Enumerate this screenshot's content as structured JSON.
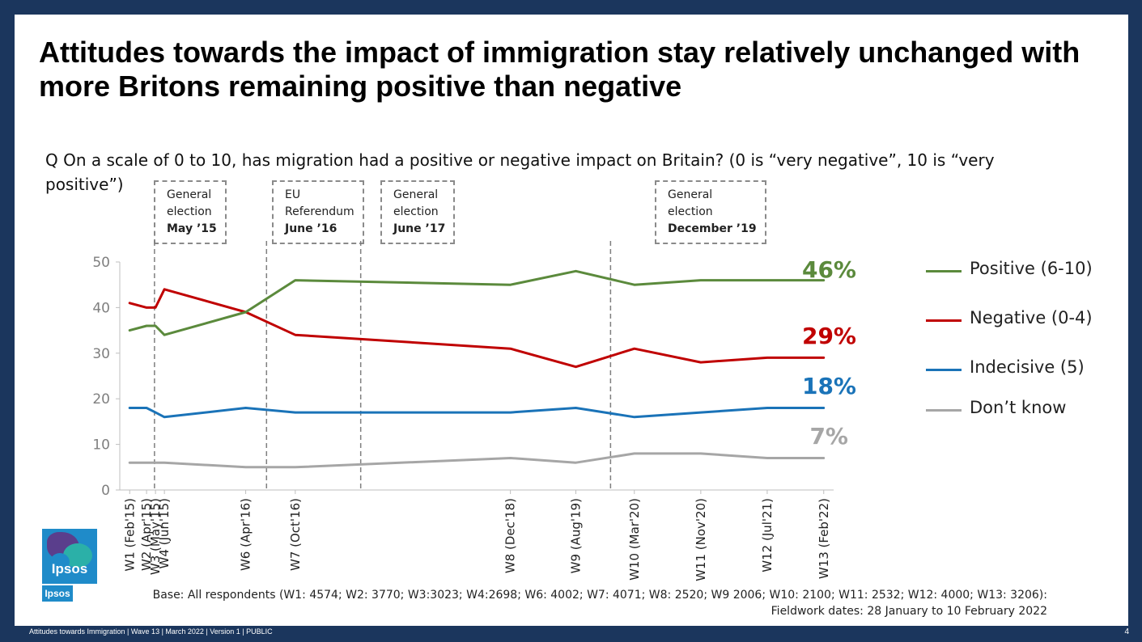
{
  "title": "Attitudes towards the impact of immigration stay relatively unchanged with more Britons remaining positive than negative",
  "question": "Q On a scale of 0 to 10, has migration had a positive or negative impact on Britain? (0 is “very negative”, 10 is “very positive”)",
  "events": [
    {
      "line1": "General",
      "line2": "election",
      "bold": "May ’15"
    },
    {
      "line1": "EU",
      "line2": "Referendum",
      "bold": "June ’16"
    },
    {
      "line1": "General",
      "line2": "election",
      "bold": "June ’17"
    },
    {
      "line1": "General",
      "line2": "election",
      "bold": "December ’19"
    }
  ],
  "chart_data": {
    "type": "line",
    "title": "",
    "xlabel": "",
    "ylabel": "",
    "ylim": [
      0,
      50
    ],
    "yticks": [
      0,
      10,
      20,
      30,
      40,
      50
    ],
    "categories": [
      "W1 (Feb'15)",
      "W2 (Apr'15)",
      "W3 (May'15)",
      "W4 (Jun'15)",
      "W6 (Apr'16)",
      "W7 (Oct'16)",
      "W8 (Dec'18)",
      "W9 (Aug'19)",
      "W10 (Mar'20)",
      "W11 (Nov'20)",
      "W12 (Jul'21)",
      "W13 (Feb'22)"
    ],
    "dates": [
      2015.1,
      2015.27,
      2015.36,
      2015.45,
      2016.27,
      2016.77,
      2018.94,
      2019.6,
      2020.19,
      2020.86,
      2021.53,
      2022.1
    ],
    "event_dates": [
      2015.35,
      2016.48,
      2017.43,
      2019.95
    ],
    "series": [
      {
        "name": "Positive (6-10)",
        "color": "#5b8a3c",
        "values": [
          35,
          36,
          36,
          34,
          39,
          46,
          45,
          48,
          45,
          46,
          46,
          46
        ],
        "end_label": "46%"
      },
      {
        "name": "Negative (0-4)",
        "color": "#c00000",
        "values": [
          41,
          40,
          40,
          44,
          39,
          34,
          31,
          27,
          31,
          28,
          29,
          29
        ],
        "end_label": "29%"
      },
      {
        "name": "Indecisive (5)",
        "color": "#1a73b8",
        "values": [
          18,
          18,
          17,
          16,
          18,
          17,
          17,
          18,
          16,
          17,
          18,
          18
        ],
        "end_label": "18%"
      },
      {
        "name": "Don’t know",
        "color": "#a6a6a6",
        "values": [
          6,
          6,
          6,
          6,
          5,
          5,
          7,
          6,
          8,
          8,
          7,
          7
        ],
        "end_label": "7%"
      }
    ]
  },
  "logo": {
    "word": "Ipsos",
    "small": "Ipsos"
  },
  "base": {
    "line1": "Base: All respondents (W1: 4574; W2: 3770; W3:3023; W4:2698; W6: 4002; W7: 4071; W8: 2520; W9 2006; W10: 2100; W11: 2532; W12: 4000; W13: 3206):",
    "line2": "Fieldwork dates: 28 January to 10 February 2022"
  },
  "footer": "Attitudes towards Immigration | Wave 13 | March 2022 | Version 1 | PUBLIC",
  "page_number": "4"
}
